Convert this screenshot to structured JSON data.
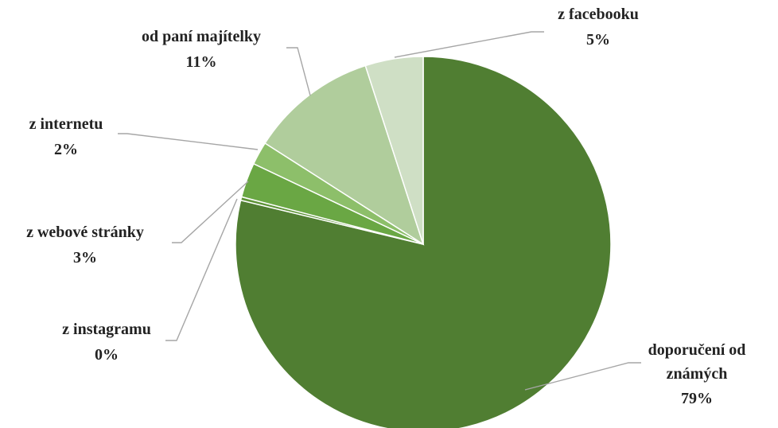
{
  "chart_data": {
    "type": "pie",
    "title": "",
    "start_angle_deg": 0,
    "direction": "clockwise",
    "slices": [
      {
        "label": "doporučení od známých",
        "value": 79,
        "value_label": "79%",
        "color": "#507e32"
      },
      {
        "label": "z instagramu",
        "value": 0.3,
        "value_label": "0%",
        "color": "#5e9438"
      },
      {
        "label": "z webové stránky",
        "value": 3,
        "value_label": "3%",
        "color": "#6aa744"
      },
      {
        "label": "z internetu",
        "value": 2,
        "value_label": "2%",
        "color": "#8dbf6a"
      },
      {
        "label": "od paní majítelky",
        "value": 11,
        "value_label": "11%",
        "color": "#b0cd9c"
      },
      {
        "label": "z facebooku",
        "value": 5,
        "value_label": "5%",
        "color": "#cfdfc5"
      }
    ]
  }
}
